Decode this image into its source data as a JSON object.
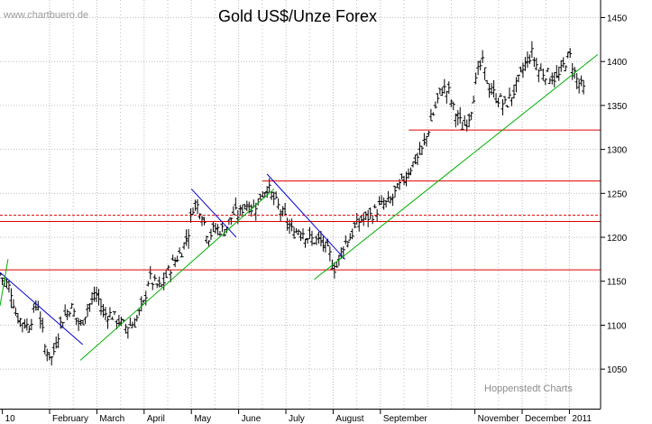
{
  "watermark": "www.chartbuero.de",
  "chart_data": {
    "type": "bar",
    "title": "Gold US$/Unze Forex",
    "subtitle": "",
    "xlabel": "",
    "ylabel": "",
    "credit": "Hoppenstedt Charts",
    "ylim": [
      1005,
      1470
    ],
    "y_ticks": [
      1050,
      1100,
      1150,
      1200,
      1250,
      1300,
      1350,
      1400,
      1450
    ],
    "grid": true,
    "x_tick_labels": [
      {
        "label": "10",
        "x": 0
      },
      {
        "label": "February",
        "x": 1
      },
      {
        "label": "March",
        "x": 2
      },
      {
        "label": "April",
        "x": 3
      },
      {
        "label": "May",
        "x": 4
      },
      {
        "label": "June",
        "x": 5
      },
      {
        "label": "July",
        "x": 6
      },
      {
        "label": "August",
        "x": 7
      },
      {
        "label": "September",
        "x": 8
      },
      {
        "label": "November",
        "x": 10
      },
      {
        "label": "December",
        "x": 11
      },
      {
        "label": "2011",
        "x": 12
      }
    ],
    "x_major_grid": [
      1,
      2,
      3,
      4,
      5,
      6,
      7,
      8,
      9,
      10,
      11,
      12
    ],
    "x_minor_grid": [
      1.5,
      2.5,
      3.5,
      4.5,
      5.5,
      6.5,
      7.5,
      8.5,
      9.5,
      10.5,
      11.5
    ],
    "x_min": -0.05,
    "x_max": 12.66,
    "price_anchors": [
      [
        -0.05,
        1158
      ],
      [
        0.18,
        1140
      ],
      [
        0.3,
        1110
      ],
      [
        0.55,
        1098
      ],
      [
        0.75,
        1127
      ],
      [
        0.9,
        1075
      ],
      [
        1.05,
        1062
      ],
      [
        1.25,
        1105
      ],
      [
        1.45,
        1122
      ],
      [
        1.65,
        1098
      ],
      [
        1.8,
        1120
      ],
      [
        2.0,
        1135
      ],
      [
        2.15,
        1113
      ],
      [
        2.3,
        1112
      ],
      [
        2.6,
        1098
      ],
      [
        2.8,
        1103
      ],
      [
        3.0,
        1125
      ],
      [
        3.1,
        1155
      ],
      [
        3.2,
        1148
      ],
      [
        3.35,
        1142
      ],
      [
        3.55,
        1165
      ],
      [
        3.8,
        1185
      ],
      [
        3.95,
        1208
      ],
      [
        4.05,
        1240
      ],
      [
        4.2,
        1232
      ],
      [
        4.35,
        1200
      ],
      [
        4.5,
        1210
      ],
      [
        4.7,
        1208
      ],
      [
        4.9,
        1228
      ],
      [
        5.0,
        1225
      ],
      [
        5.15,
        1240
      ],
      [
        5.3,
        1232
      ],
      [
        5.45,
        1245
      ],
      [
        5.6,
        1258
      ],
      [
        5.78,
        1240
      ],
      [
        5.95,
        1225
      ],
      [
        6.15,
        1205
      ],
      [
        6.3,
        1210
      ],
      [
        6.5,
        1198
      ],
      [
        6.75,
        1195
      ],
      [
        6.95,
        1178
      ],
      [
        7.05,
        1162
      ],
      [
        7.2,
        1190
      ],
      [
        7.35,
        1200
      ],
      [
        7.55,
        1218
      ],
      [
        7.8,
        1225
      ],
      [
        8.0,
        1235
      ],
      [
        8.2,
        1240
      ],
      [
        8.45,
        1262
      ],
      [
        8.7,
        1285
      ],
      [
        8.9,
        1300
      ],
      [
        9.1,
        1338
      ],
      [
        9.3,
        1370
      ],
      [
        9.45,
        1365
      ],
      [
        9.55,
        1345
      ],
      [
        9.75,
        1325
      ],
      [
        9.9,
        1340
      ],
      [
        10.05,
        1385
      ],
      [
        10.15,
        1400
      ],
      [
        10.3,
        1370
      ],
      [
        10.45,
        1360
      ],
      [
        10.65,
        1350
      ],
      [
        10.85,
        1368
      ],
      [
        11.05,
        1395
      ],
      [
        11.2,
        1410
      ],
      [
        11.35,
        1390
      ],
      [
        11.55,
        1385
      ],
      [
        11.75,
        1380
      ],
      [
        11.9,
        1398
      ],
      [
        12.0,
        1408
      ],
      [
        12.15,
        1380
      ],
      [
        12.3,
        1368
      ]
    ],
    "horizontal_lines": [
      {
        "y": 1322,
        "x_from": 8.6,
        "style": "solid",
        "color": "#e00000"
      },
      {
        "y": 1264,
        "x_from": 5.5,
        "style": "solid",
        "color": "#e00000"
      },
      {
        "y": 1225,
        "x_from": -0.05,
        "style": "dashed",
        "color": "#e00000"
      },
      {
        "y": 1218,
        "x_from": -0.05,
        "style": "solid",
        "color": "#e00000"
      },
      {
        "y": 1163,
        "x_from": -0.05,
        "style": "solid",
        "color": "#e00000"
      }
    ],
    "trendlines": [
      {
        "color": "#0000d0",
        "from": [
          -0.05,
          1160
        ],
        "to": [
          1.7,
          1078
        ]
      },
      {
        "color": "#0000d0",
        "from": [
          4.0,
          1255
        ],
        "to": [
          4.95,
          1200
        ]
      },
      {
        "color": "#0000d0",
        "from": [
          5.6,
          1272
        ],
        "to": [
          7.25,
          1175
        ]
      },
      {
        "color": "#00b000",
        "from": [
          1.65,
          1060
        ],
        "to": [
          5.75,
          1255
        ]
      },
      {
        "color": "#00b000",
        "from": [
          6.6,
          1152
        ],
        "to": [
          12.6,
          1408
        ]
      },
      {
        "color": "#00b000",
        "from": [
          -0.05,
          1122
        ],
        "to": [
          0.12,
          1175
        ]
      }
    ],
    "colors": {
      "bars": "#000000",
      "grid": "#bdbdbd",
      "support": "#e00000",
      "downtrend": "#0000d0",
      "uptrend": "#00b000"
    }
  }
}
